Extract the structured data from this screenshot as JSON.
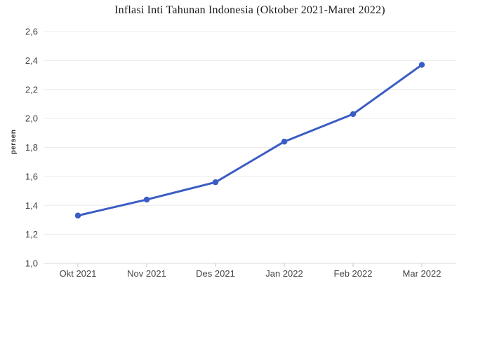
{
  "title": "Inflasi Inti Tahunan Indonesia (Oktober 2021-Maret 2022)",
  "chart_data": {
    "type": "line",
    "title": "Inflasi Inti Tahunan Indonesia (Oktober 2021-Maret 2022)",
    "xlabel": "",
    "ylabel": "persen",
    "categories": [
      "Okt 2021",
      "Nov 2021",
      "Des 2021",
      "Jan 2022",
      "Feb 2022",
      "Mar 2022"
    ],
    "series": [
      {
        "name": "Inflasi inti tahunan",
        "values": [
          1.33,
          1.44,
          1.56,
          1.84,
          2.03,
          2.37
        ]
      }
    ],
    "ylim": [
      1.0,
      2.6
    ],
    "y_ticks": [
      1.0,
      1.2,
      1.4,
      1.6,
      1.8,
      2.0,
      2.2,
      2.4,
      2.6
    ],
    "y_tick_labels": [
      "1,0",
      "1,2",
      "1,4",
      "1,6",
      "1,8",
      "2,0",
      "2,2",
      "2,4",
      "2,6"
    ],
    "grid": "horizontal",
    "legend": "none",
    "colors": {
      "line": "#3b5cc4",
      "point": "#3b5cc4",
      "grid": "#ececec",
      "baseline": "#d9d9d9",
      "tick": "#c9c9c9",
      "label": "#444444",
      "title": "#1a1a1a"
    }
  }
}
